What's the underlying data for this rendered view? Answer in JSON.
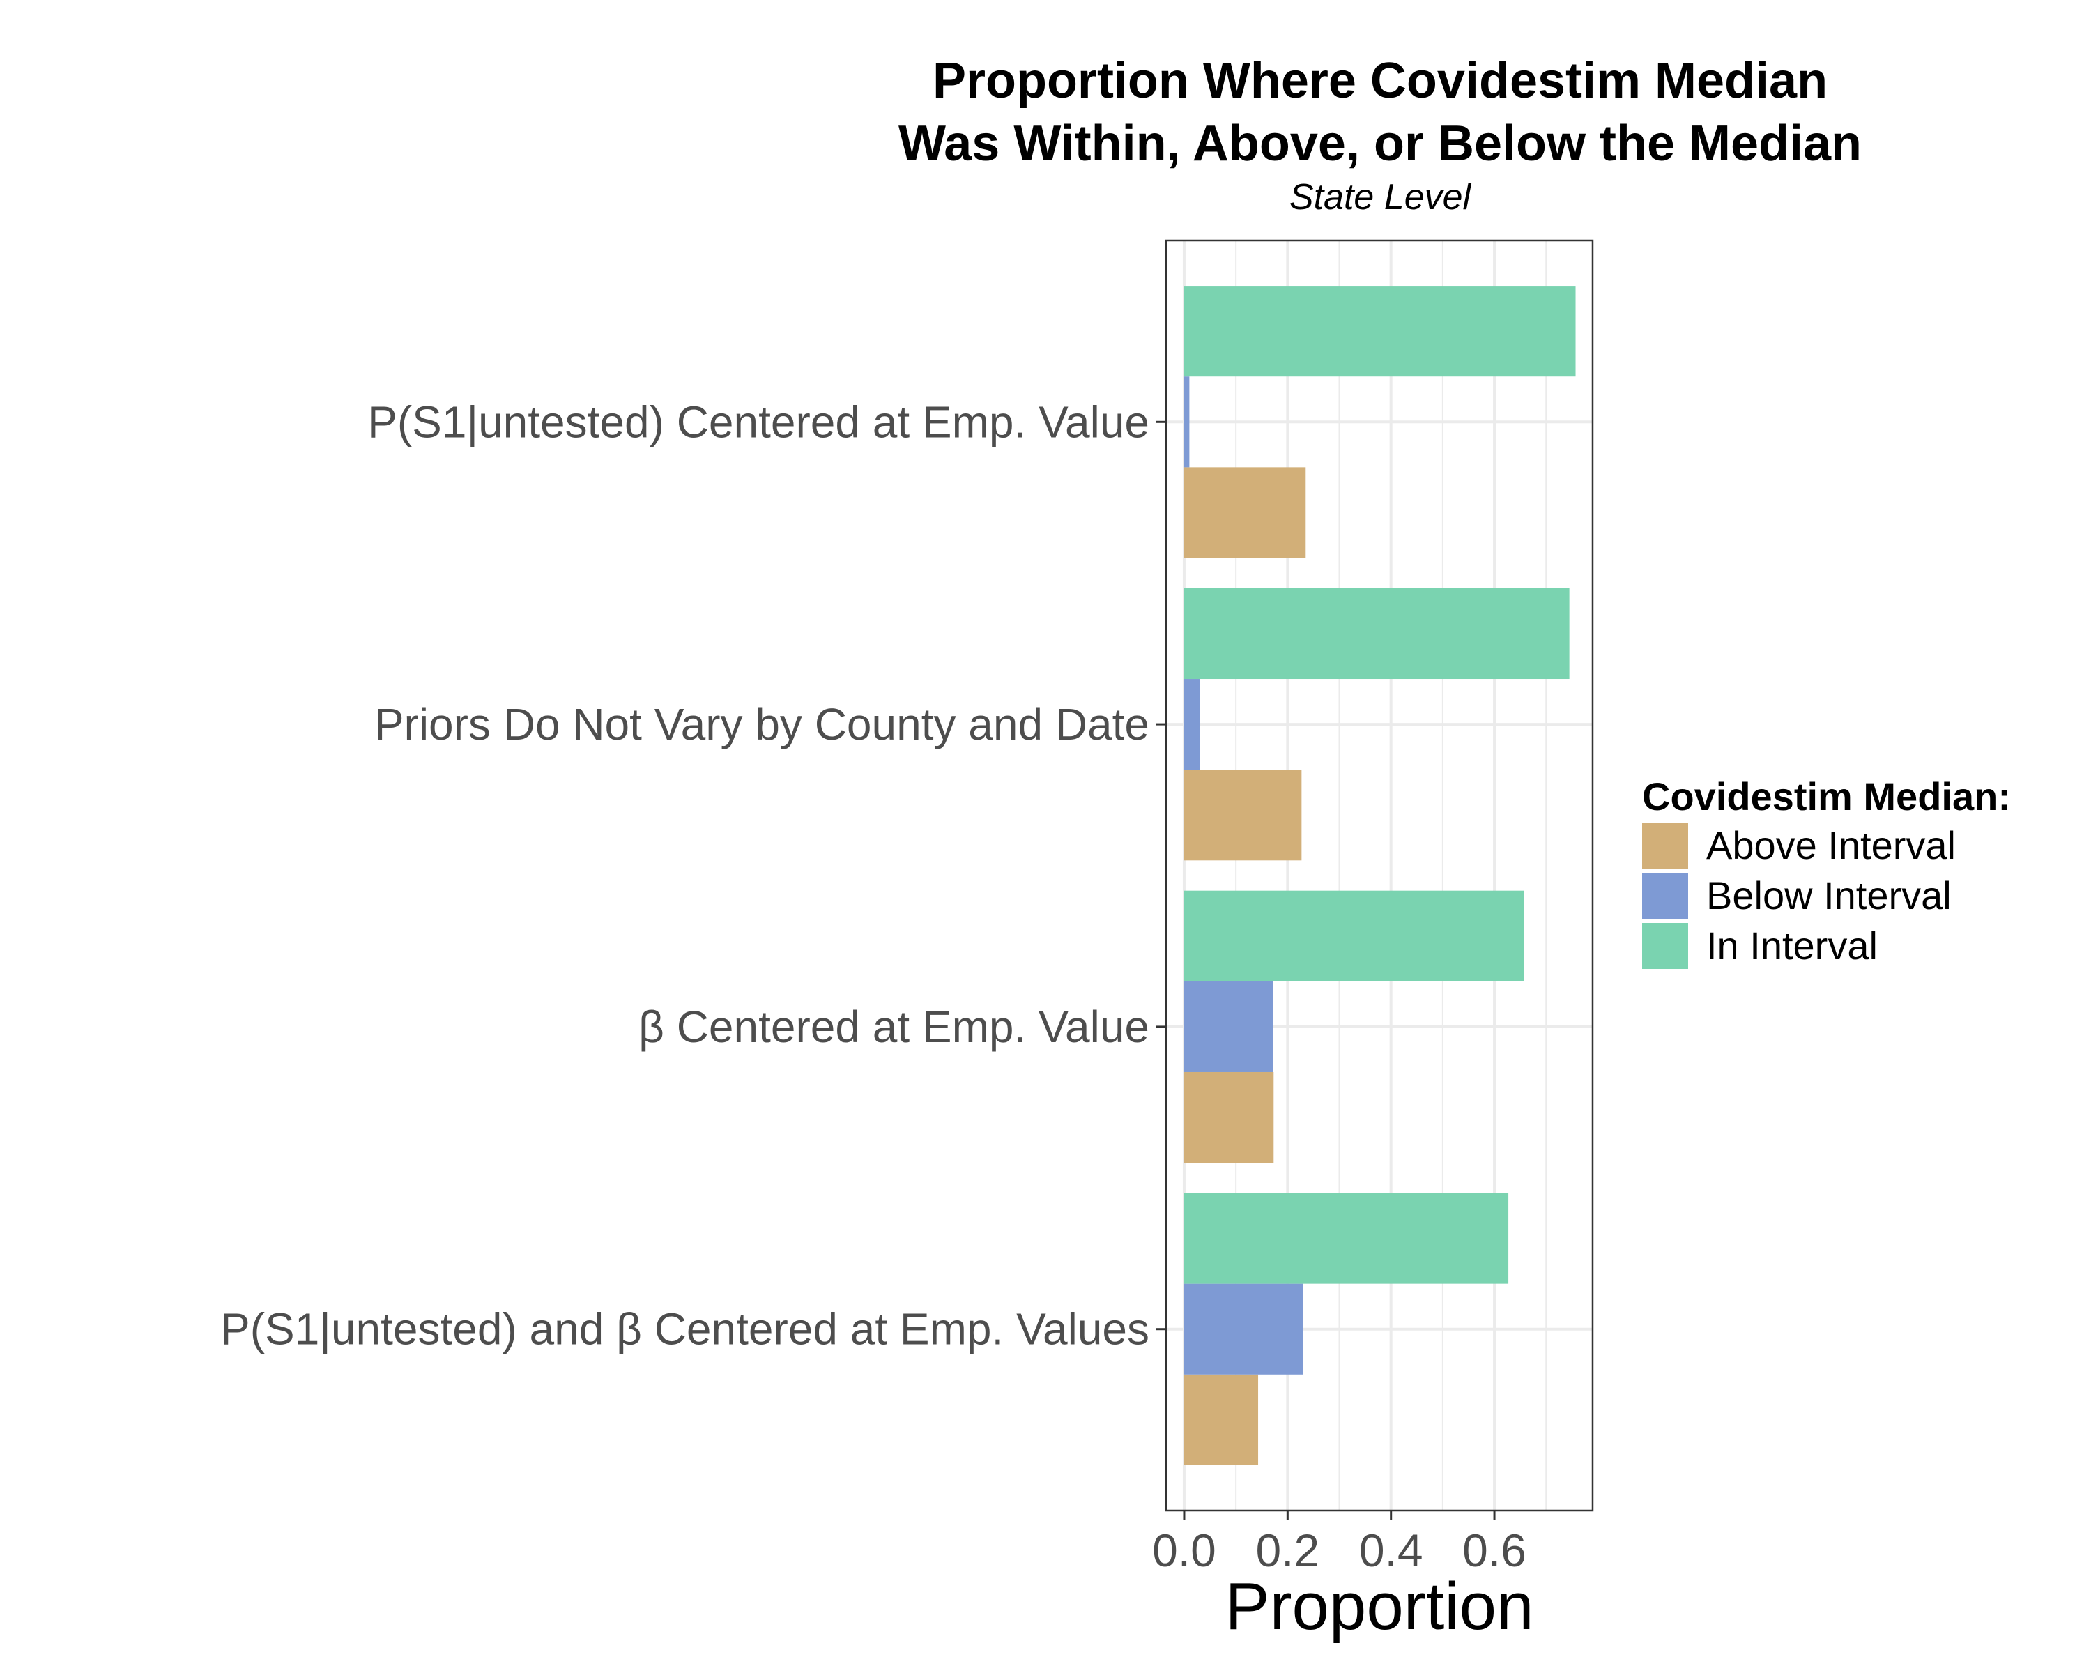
{
  "chart_data": {
    "type": "bar",
    "orientation": "horizontal",
    "title_lines": [
      "Proportion Where Covidestim Median",
      "Was Within, Above, or Below the Median"
    ],
    "subtitle": "State Level",
    "xlabel": "Proportion",
    "ylabel": "",
    "xlim": [
      -0.035,
      0.79
    ],
    "x_ticks": [
      0.0,
      0.2,
      0.4,
      0.6
    ],
    "x_tick_labels": [
      "0.0",
      "0.2",
      "0.4",
      "0.6"
    ],
    "grid": true,
    "legend": {
      "title": "Covidestim Median:",
      "placement": "right"
    },
    "categories": [
      "P(S1|untested) Centered at Emp. Value",
      "Priors Do Not Vary by County and Date",
      "β Centered at Emp. Value",
      "P(S1|untested) and β Centered at Emp. Values"
    ],
    "series": [
      {
        "name": "Above Interval",
        "color": "#D2AF78",
        "values": [
          0.235,
          0.227,
          0.173,
          0.143
        ]
      },
      {
        "name": "Below Interval",
        "color": "#7E9AD4",
        "values": [
          0.01,
          0.03,
          0.172,
          0.23
        ]
      },
      {
        "name": "In Interval",
        "color": "#7AD3B0",
        "values": [
          0.757,
          0.745,
          0.657,
          0.627
        ]
      }
    ]
  }
}
